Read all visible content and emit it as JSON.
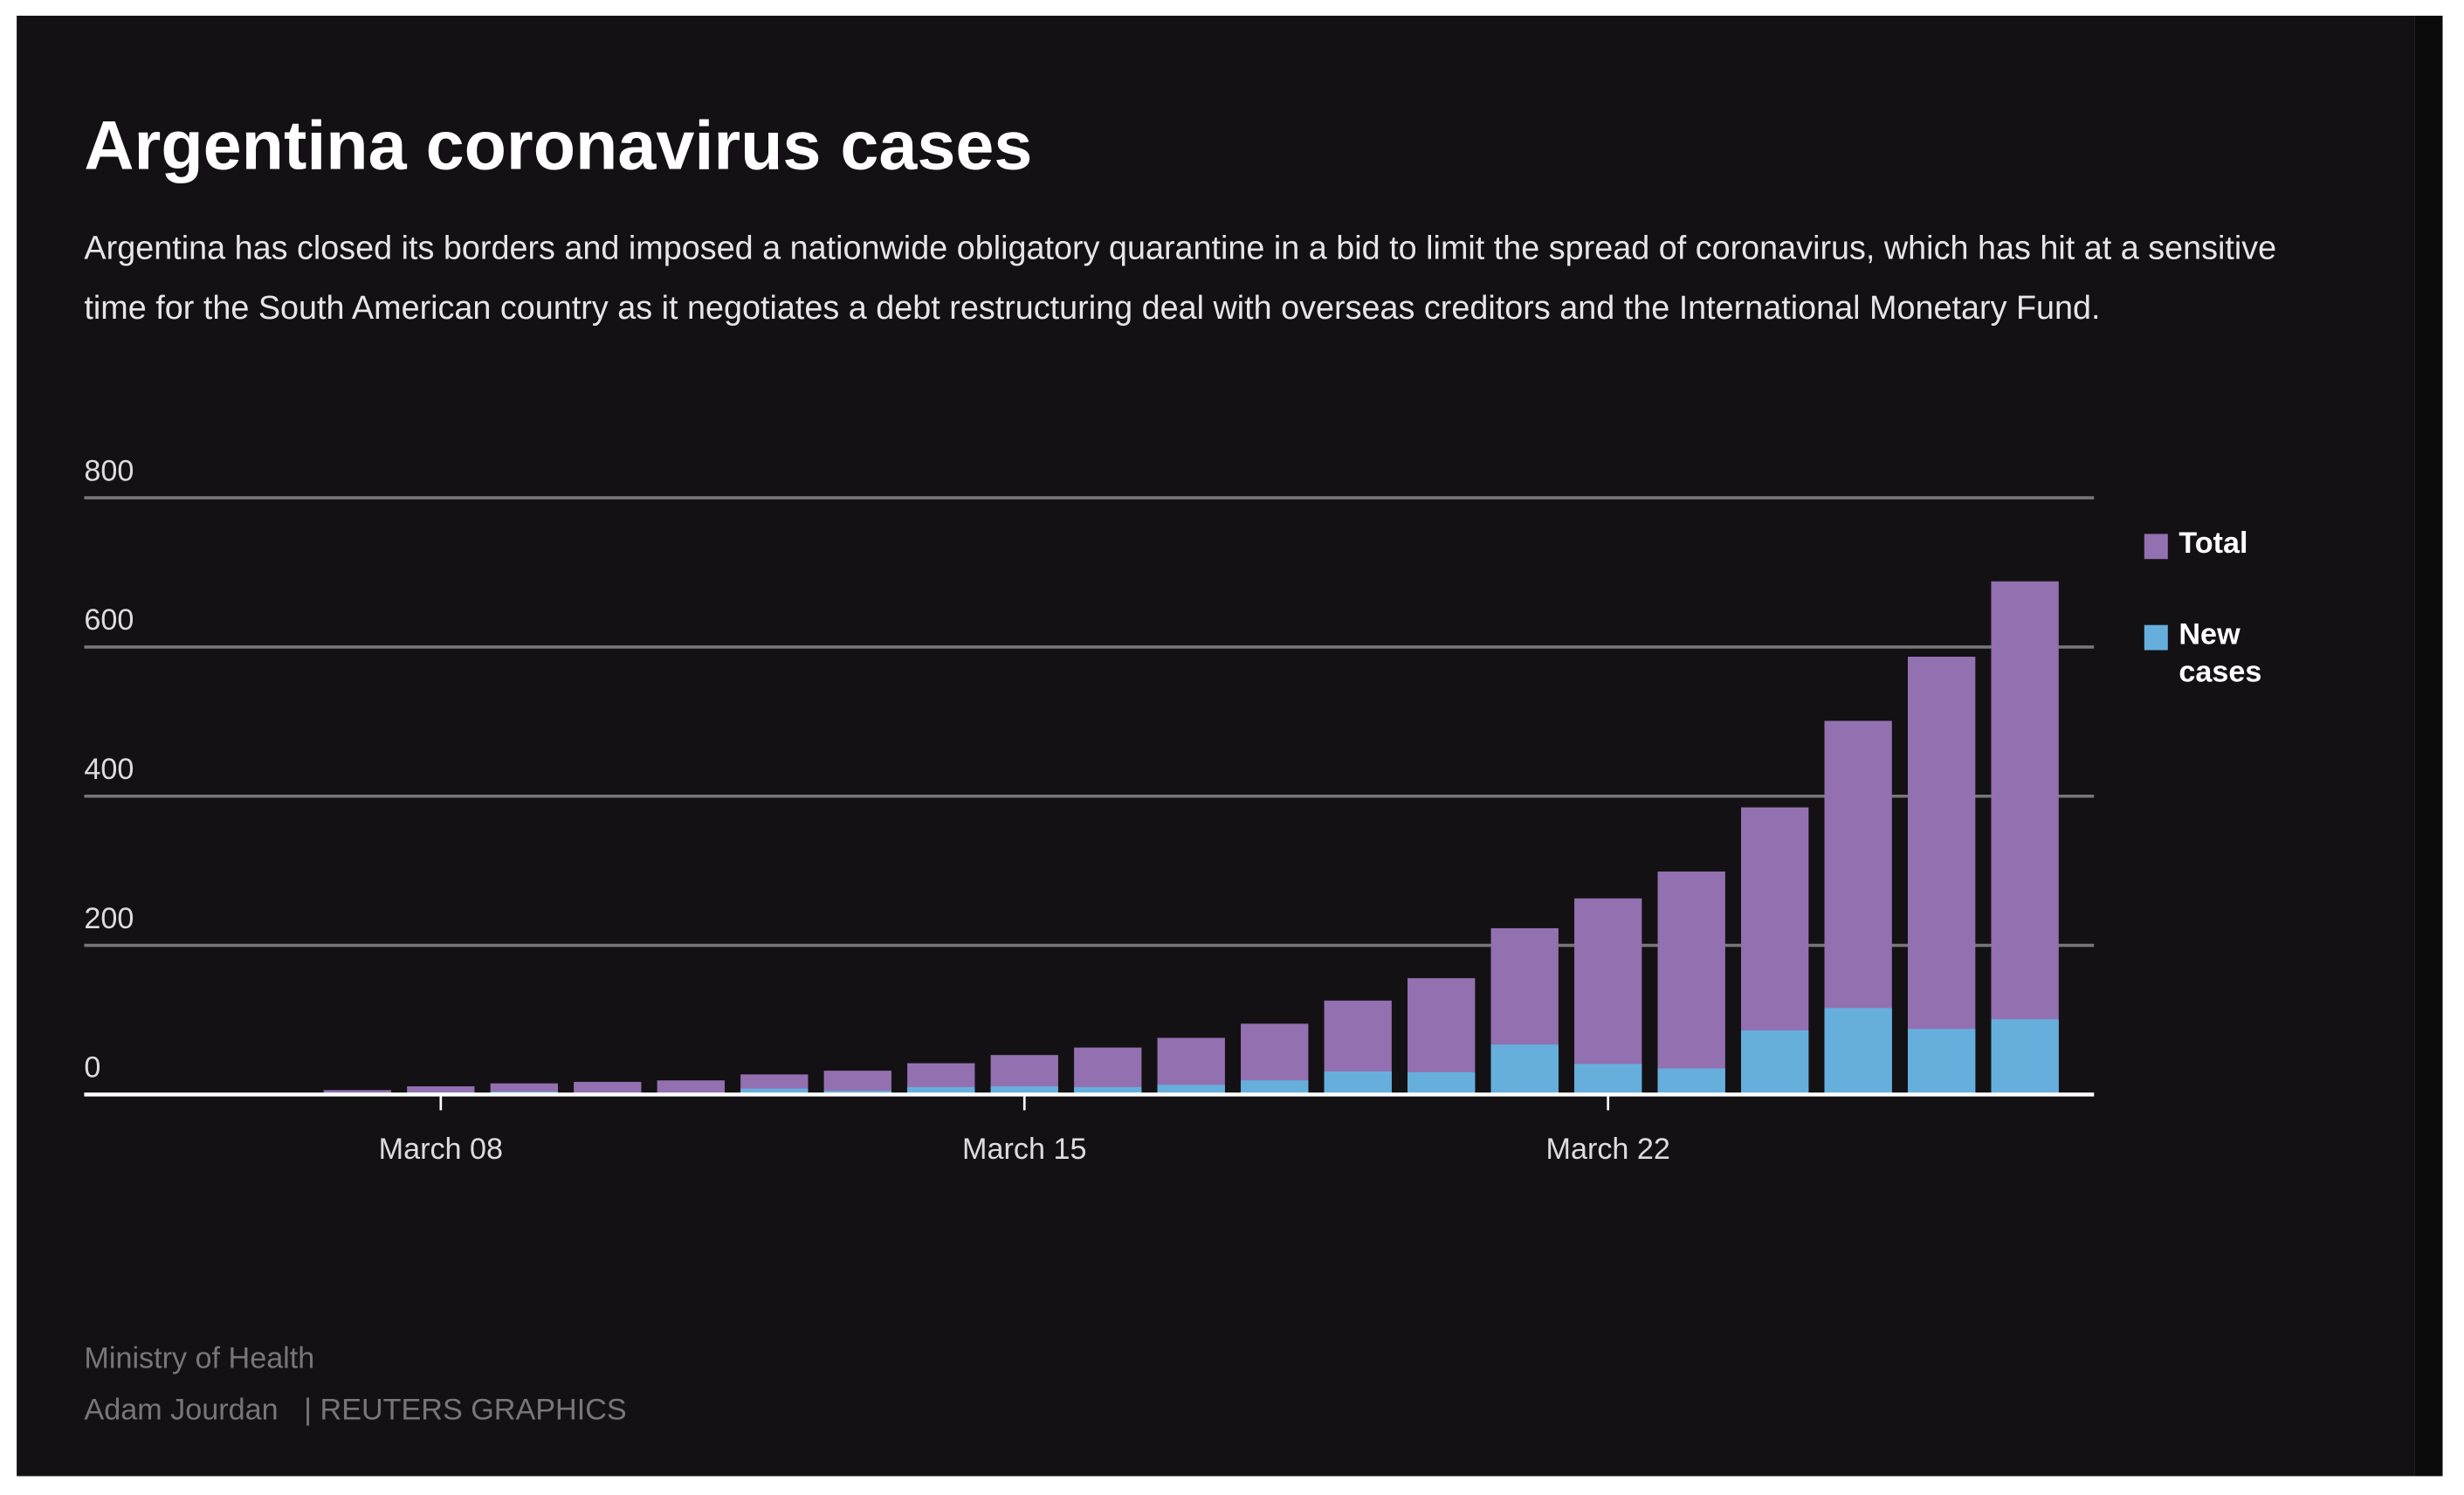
{
  "chart_data": {
    "type": "bar",
    "title": "Argentina coronavirus cases",
    "subtitle": "Argentina has closed its borders and imposed a nationwide obligatory quarantine in a bid to limit the spread of coronavirus, which has hit at a sensitive time for the South American country as it negotiates a debt restructuring deal with overseas creditors and the International Monetary Fund.",
    "source": "Ministry of Health",
    "credit": "Adam Jourdan",
    "publisher": "| REUTERS GRAPHICS",
    "categories": [
      null,
      "March 08",
      null,
      null,
      null,
      null,
      null,
      null,
      "March 15",
      null,
      null,
      null,
      null,
      null,
      null,
      "March 22",
      null,
      null,
      null,
      null,
      null
    ],
    "series": [
      {
        "name": "Total",
        "color": "#9370b0",
        "values": [
          6,
          11,
          15,
          17,
          19,
          27,
          32,
          42,
          53,
          63,
          76,
          95,
          126,
          156,
          223,
          263,
          299,
          385,
          501,
          587,
          688
        ]
      },
      {
        "name": "New cases",
        "color": "#66afdd",
        "values": [
          2,
          3,
          4,
          2,
          2,
          8,
          5,
          10,
          11,
          10,
          13,
          19,
          31,
          30,
          67,
          41,
          35,
          86,
          116,
          88,
          101
        ]
      }
    ],
    "ylim": [
      0,
      800
    ],
    "yticks": [
      0,
      200,
      400,
      600,
      800
    ],
    "grid": true,
    "legend": "right"
  }
}
